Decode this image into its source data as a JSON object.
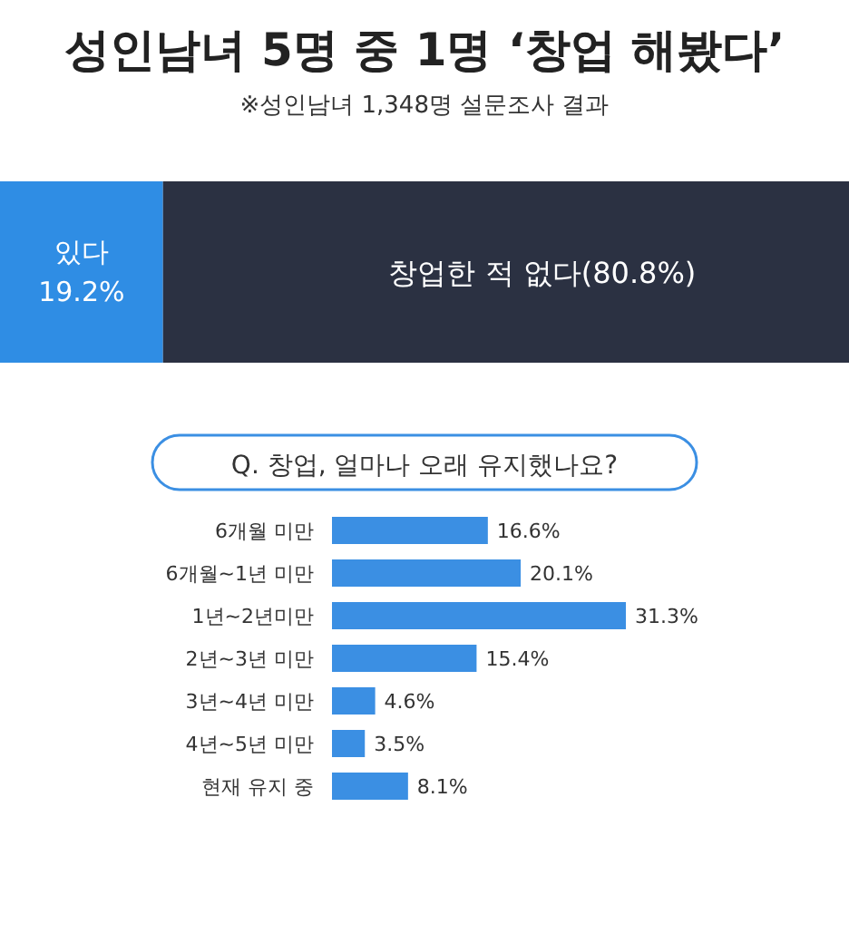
{
  "chart_data": [
    {
      "type": "bar",
      "orientation": "horizontal",
      "stacked": true,
      "title": "성인남녀 5명 중 1명 ‘창업 해봤다’",
      "subtitle": "※성인남녀 1,348명 설문조사 결과",
      "categories": [
        null
      ],
      "tick_labels": false,
      "series": [
        {
          "name": "있다",
          "color": "#2f8de4",
          "values": [
            19.2
          ],
          "value_labels": [
            "19.2%"
          ]
        },
        {
          "name": "창업한 적 없다",
          "color": "#2b3142",
          "values": [
            80.8
          ],
          "value_labels": [
            "(80.8%)"
          ]
        }
      ]
    },
    {
      "type": "bar",
      "orientation": "horizontal",
      "title": "Q. 창업, 얼마나 오래 유지했나요?",
      "categories": [
        "6개월 미만",
        "6개월~1년 미만",
        "1년~2년미만",
        "2년~3년 미만",
        "3년~4년 미만",
        "4년~5년 미만",
        "현재 유지 중"
      ],
      "tick_labels": false,
      "color": "#3b8fe3",
      "values": [
        16.6,
        20.1,
        31.3,
        15.4,
        4.6,
        3.5,
        8.1
      ],
      "value_labels": [
        "16.6%",
        "20.1%",
        "31.3%",
        "15.4%",
        "4.6%",
        "3.5%",
        "8.1%"
      ]
    }
  ]
}
